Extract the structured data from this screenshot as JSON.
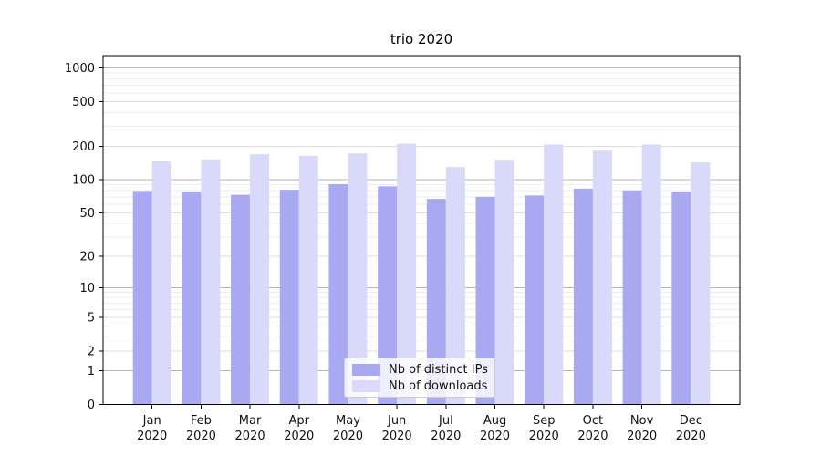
{
  "figure": {
    "title": "trio 2020"
  },
  "chart_data": {
    "type": "bar",
    "title": "trio 2020",
    "xlabel": "",
    "ylabel": "",
    "categories": [
      "Jan 2020",
      "Feb 2020",
      "Mar 2020",
      "Apr 2020",
      "May 2020",
      "Jun 2020",
      "Jul 2020",
      "Aug 2020",
      "Sep 2020",
      "Oct 2020",
      "Nov 2020",
      "Dec 2020"
    ],
    "x_tick_months": [
      "Jan",
      "Feb",
      "Mar",
      "Apr",
      "May",
      "Jun",
      "Jul",
      "Aug",
      "Sep",
      "Oct",
      "Nov",
      "Dec"
    ],
    "x_tick_year": "2020",
    "series": [
      {
        "name": "Nb of distinct IPs",
        "color": "#a9a9f1",
        "values": [
          79,
          78,
          73,
          81,
          91,
          87,
          67,
          70,
          72,
          83,
          80,
          78
        ]
      },
      {
        "name": "Nb of downloads",
        "color": "#d9d9f9",
        "values": [
          148,
          152,
          169,
          164,
          172,
          210,
          130,
          151,
          207,
          182,
          207,
          143
        ]
      }
    ],
    "yscale": "log1p",
    "ylim": [
      0,
      1200
    ],
    "y_major_ticks": [
      0,
      1,
      2,
      5,
      10,
      20,
      50,
      100,
      200,
      500,
      1000
    ],
    "y_minor_ticks": [
      3,
      4,
      6,
      7,
      8,
      9,
      30,
      40,
      60,
      70,
      80,
      90,
      300,
      400,
      600,
      700,
      800,
      900
    ],
    "grid": "horizontal",
    "legend_position": "inside-bottom-center",
    "colors": {
      "grid_power10": "#b5b5b5",
      "grid_major": "#dedede",
      "grid_minor": "#ededed",
      "axis": "#000000",
      "tick_text": "#111111",
      "plot_background": "#ffffff"
    }
  }
}
